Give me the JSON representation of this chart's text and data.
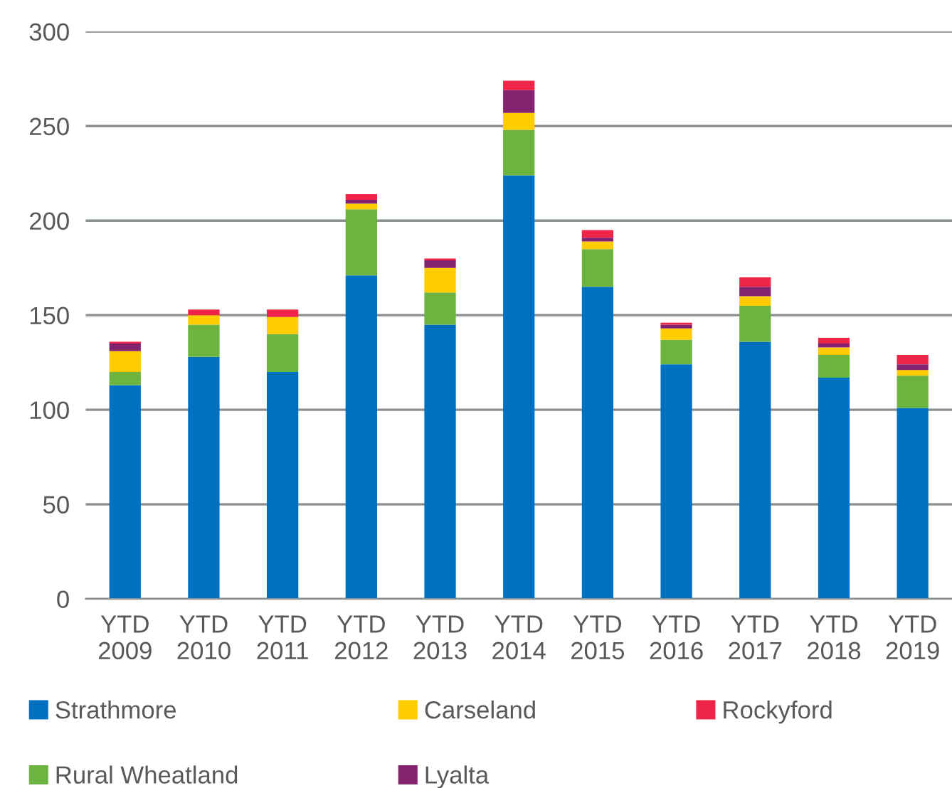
{
  "chart_data": {
    "type": "bar",
    "stacked": true,
    "categories": [
      "YTD\n2009",
      "YTD\n2010",
      "YTD\n2011",
      "YTD\n2012",
      "YTD\n2013",
      "YTD\n2014",
      "YTD\n2015",
      "YTD\n2016",
      "YTD\n2017",
      "YTD\n2018",
      "YTD\n2019"
    ],
    "series": [
      {
        "name": "Strathmore",
        "color": "#0070c0",
        "values": [
          113,
          128,
          120,
          171,
          145,
          224,
          165,
          124,
          136,
          117,
          101
        ]
      },
      {
        "name": "Rural Wheatland",
        "color": "#6db33f",
        "values": [
          7,
          17,
          20,
          35,
          17,
          24,
          20,
          13,
          19,
          12,
          17
        ]
      },
      {
        "name": "Carseland",
        "color": "#ffcc00",
        "values": [
          11,
          5,
          9,
          3,
          13,
          9,
          4,
          6,
          5,
          4,
          3
        ]
      },
      {
        "name": "Lyalta",
        "color": "#832370",
        "values": [
          4,
          0,
          0,
          2,
          4,
          12,
          2,
          2,
          5,
          2,
          3
        ]
      },
      {
        "name": "Rockyford",
        "color": "#ee2449",
        "values": [
          1,
          3,
          4,
          3,
          1,
          5,
          4,
          1,
          5,
          3,
          5
        ]
      }
    ],
    "ylim": [
      0,
      300
    ],
    "yticks": [
      0,
      50,
      100,
      150,
      200,
      250,
      300
    ],
    "grid": "y",
    "legend": "bottom"
  }
}
